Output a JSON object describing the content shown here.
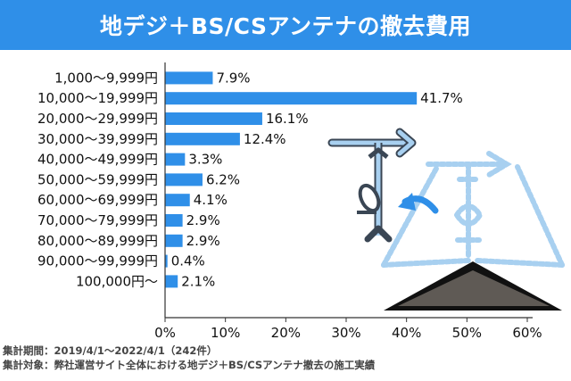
{
  "title": "地デジ＋BS/CSアンテナの撤去費用",
  "colors": {
    "banner": "#2f8fe8",
    "bar": "#2f8fe8",
    "antenna_light": "#a8d0f0",
    "antenna_dark": "#3a4654",
    "roof": "#5f5a55"
  },
  "chart_data": {
    "type": "bar",
    "orientation": "horizontal",
    "categories": [
      "1,000～9,999円",
      "10,000～19,999円",
      "20,000～29,999円",
      "30,000～39,999円",
      "40,000～49,999円",
      "50,000～59,999円",
      "60,000～69,999円",
      "70,000～79,999円",
      "80,000～89,999円",
      "90,000～99,999円",
      "100,000円～"
    ],
    "values": [
      7.9,
      41.7,
      16.1,
      12.4,
      3.3,
      6.2,
      4.1,
      2.9,
      2.9,
      0.4,
      2.1
    ],
    "value_labels": [
      "7.9%",
      "41.7%",
      "16.1%",
      "12.4%",
      "3.3%",
      "6.2%",
      "4.1%",
      "2.9%",
      "2.9%",
      "0.4%",
      "2.1%"
    ],
    "xlim": [
      0,
      60
    ],
    "xticks": [
      0,
      10,
      20,
      30,
      40,
      50,
      60
    ],
    "xtick_labels": [
      "0%",
      "10%",
      "20%",
      "30%",
      "40%",
      "50%",
      "60%"
    ],
    "grid": false,
    "legend": "none"
  },
  "footnotes": {
    "period": "集計期間：2019/4/1～2022/4/1（242件）",
    "subject": "集計対象：弊社運営サイト全体における地デジ＋BS/CSアンテナ撤去の施工実績"
  },
  "illustration": {
    "icons": [
      "antenna-mast-icon",
      "satellite-dish-icon",
      "removal-arrow-icon",
      "roof-icon",
      "dashed-antenna-icon"
    ]
  }
}
